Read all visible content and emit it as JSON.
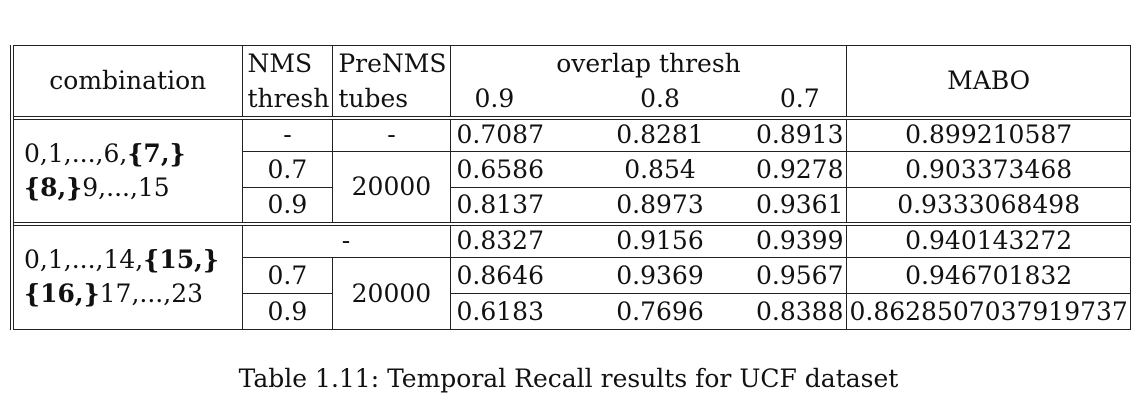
{
  "header": {
    "combination": "combination",
    "nms_line1": "NMS",
    "nms_line2": "thresh",
    "prenms_line1": "PreNMS",
    "prenms_line2": "tubes",
    "overlap": "overlap thresh",
    "ov1": "0.9",
    "ov2": "0.8",
    "ov3": "0.7",
    "mabo": "MABO"
  },
  "group1": {
    "combo_a": "0,1,...,6,",
    "combo_b": "{7,}",
    "combo_c": "{8,}",
    "combo_d": "9,...,15",
    "rows": [
      {
        "nms": "-",
        "prenms": "-",
        "v09": "0.7087",
        "v08": "0.8281",
        "v07": "0.8913",
        "mabo": "0.899210587"
      },
      {
        "nms": "0.7",
        "prenms": "20000",
        "v09": "0.6586",
        "v08": "0.854",
        "v07": "0.9278",
        "mabo": "0.903373468"
      },
      {
        "nms": "0.9",
        "v09": "0.8137",
        "v08": "0.8973",
        "v07": "0.9361",
        "mabo": "0.9333068498"
      }
    ]
  },
  "group2": {
    "combo_a": "0,1,...,14,",
    "combo_b": "{15,}",
    "combo_c": "{16,}",
    "combo_d": "17,...,23",
    "rows": [
      {
        "nms_prenms": "-",
        "v09": "0.8327",
        "v08": "0.9156",
        "v07": "0.9399",
        "mabo": "0.940143272"
      },
      {
        "nms": "0.7",
        "prenms": "20000",
        "v09": "0.8646",
        "v08": "0.9369",
        "v07": "0.9567",
        "mabo": "0.946701832"
      },
      {
        "nms": "0.9",
        "v09": "0.6183",
        "v08": "0.7696",
        "v07": "0.8388",
        "mabo": "0.8628507037919737"
      }
    ]
  },
  "caption": "Table 1.11: Temporal Recall results for UCF dataset"
}
